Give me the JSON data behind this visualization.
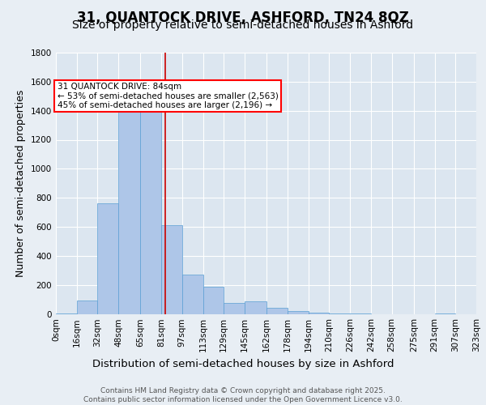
{
  "title_line1": "31, QUANTOCK DRIVE, ASHFORD, TN24 8QZ",
  "title_line2": "Size of property relative to semi-detached houses in Ashford",
  "xlabel": "Distribution of semi-detached houses by size in Ashford",
  "ylabel": "Number of semi-detached properties",
  "annotation_title": "31 QUANTOCK DRIVE: 84sqm",
  "annotation_line2": "← 53% of semi-detached houses are smaller (2,563)",
  "annotation_line3": "45% of semi-detached houses are larger (2,196) →",
  "footer_line1": "Contains HM Land Registry data © Crown copyright and database right 2025.",
  "footer_line2": "Contains public sector information licensed under the Open Government Licence v3.0.",
  "property_size": 84,
  "bin_edges": [
    0,
    16,
    32,
    48,
    65,
    81,
    97,
    113,
    129,
    145,
    162,
    178,
    194,
    210,
    226,
    242,
    258,
    275,
    291,
    307,
    323
  ],
  "bar_heights": [
    5,
    90,
    760,
    1450,
    1390,
    610,
    270,
    185,
    75,
    85,
    40,
    20,
    10,
    5,
    5,
    0,
    0,
    0,
    5,
    0
  ],
  "bar_color": "#aec6e8",
  "bar_edge_color": "#5a9fd4",
  "vline_color": "#cc0000",
  "vline_x": 84,
  "ylim": [
    0,
    1800
  ],
  "yticks": [
    0,
    200,
    400,
    600,
    800,
    1000,
    1200,
    1400,
    1600,
    1800
  ],
  "bg_color": "#e8eef4",
  "plot_bg_color": "#dce6f0",
  "grid_color": "#ffffff",
  "title_fontsize": 12,
  "subtitle_fontsize": 10,
  "axis_label_fontsize": 9,
  "tick_fontsize": 7.5,
  "annotation_fontsize": 7.5,
  "footer_fontsize": 6.5
}
